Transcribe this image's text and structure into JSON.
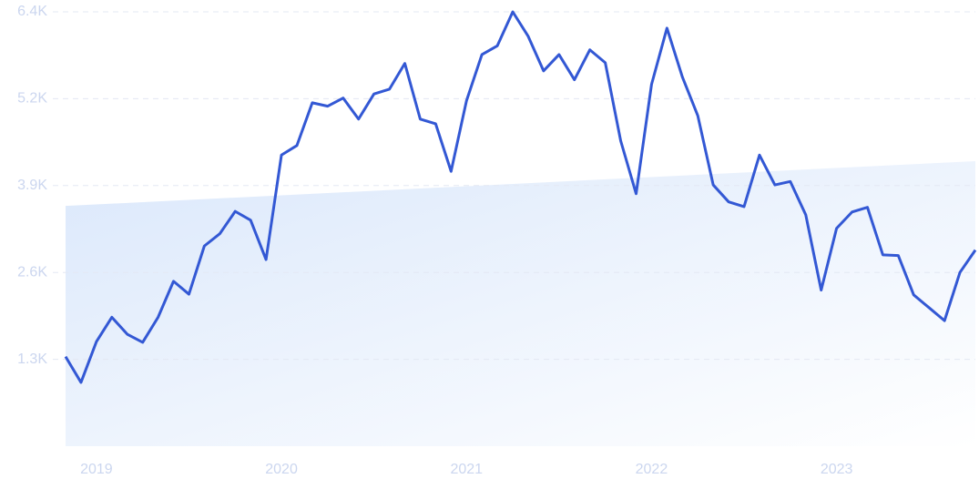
{
  "chart_data": {
    "type": "line",
    "categories": [
      null,
      null,
      "2019",
      null,
      null,
      null,
      null,
      null,
      null,
      null,
      null,
      null,
      null,
      null,
      "2020",
      null,
      null,
      null,
      null,
      null,
      null,
      null,
      null,
      null,
      null,
      null,
      "2021",
      null,
      null,
      null,
      null,
      null,
      null,
      null,
      null,
      null,
      null,
      null,
      "2022",
      null,
      null,
      null,
      null,
      null,
      null,
      null,
      null,
      null,
      null,
      null,
      "2023",
      null,
      null,
      null,
      null,
      null,
      null,
      null,
      null,
      null
    ],
    "series": [
      {
        "color": "#3358d4",
        "values": [
          1320,
          940,
          1540,
          1900,
          1650,
          1530,
          1900,
          2430,
          2240,
          2950,
          3130,
          3460,
          3330,
          2750,
          4290,
          4430,
          5060,
          5010,
          5130,
          4820,
          5190,
          5260,
          5640,
          4820,
          4750,
          4050,
          5090,
          5770,
          5900,
          6400,
          6040,
          5530,
          5770,
          5400,
          5840,
          5650,
          4500,
          3720,
          5330,
          6160,
          5440,
          4870,
          3850,
          3600,
          3530,
          4290,
          3850,
          3900,
          3410,
          2300,
          3210,
          3450,
          3520,
          2820,
          2810,
          2230,
          2040,
          1850,
          2560,
          2890
        ]
      }
    ],
    "trend": {
      "color": "#dbe8fb",
      "values": [
        3540,
        4200
      ]
    },
    "ylim": [
      0,
      6400
    ],
    "yticks": [
      {
        "value": 1280,
        "label": "1.3K"
      },
      {
        "value": 2560,
        "label": "2.6K"
      },
      {
        "value": 3840,
        "label": "3.9K"
      },
      {
        "value": 5120,
        "label": "5.2K"
      },
      {
        "value": 6400,
        "label": "6.4K"
      }
    ],
    "grid": true
  }
}
